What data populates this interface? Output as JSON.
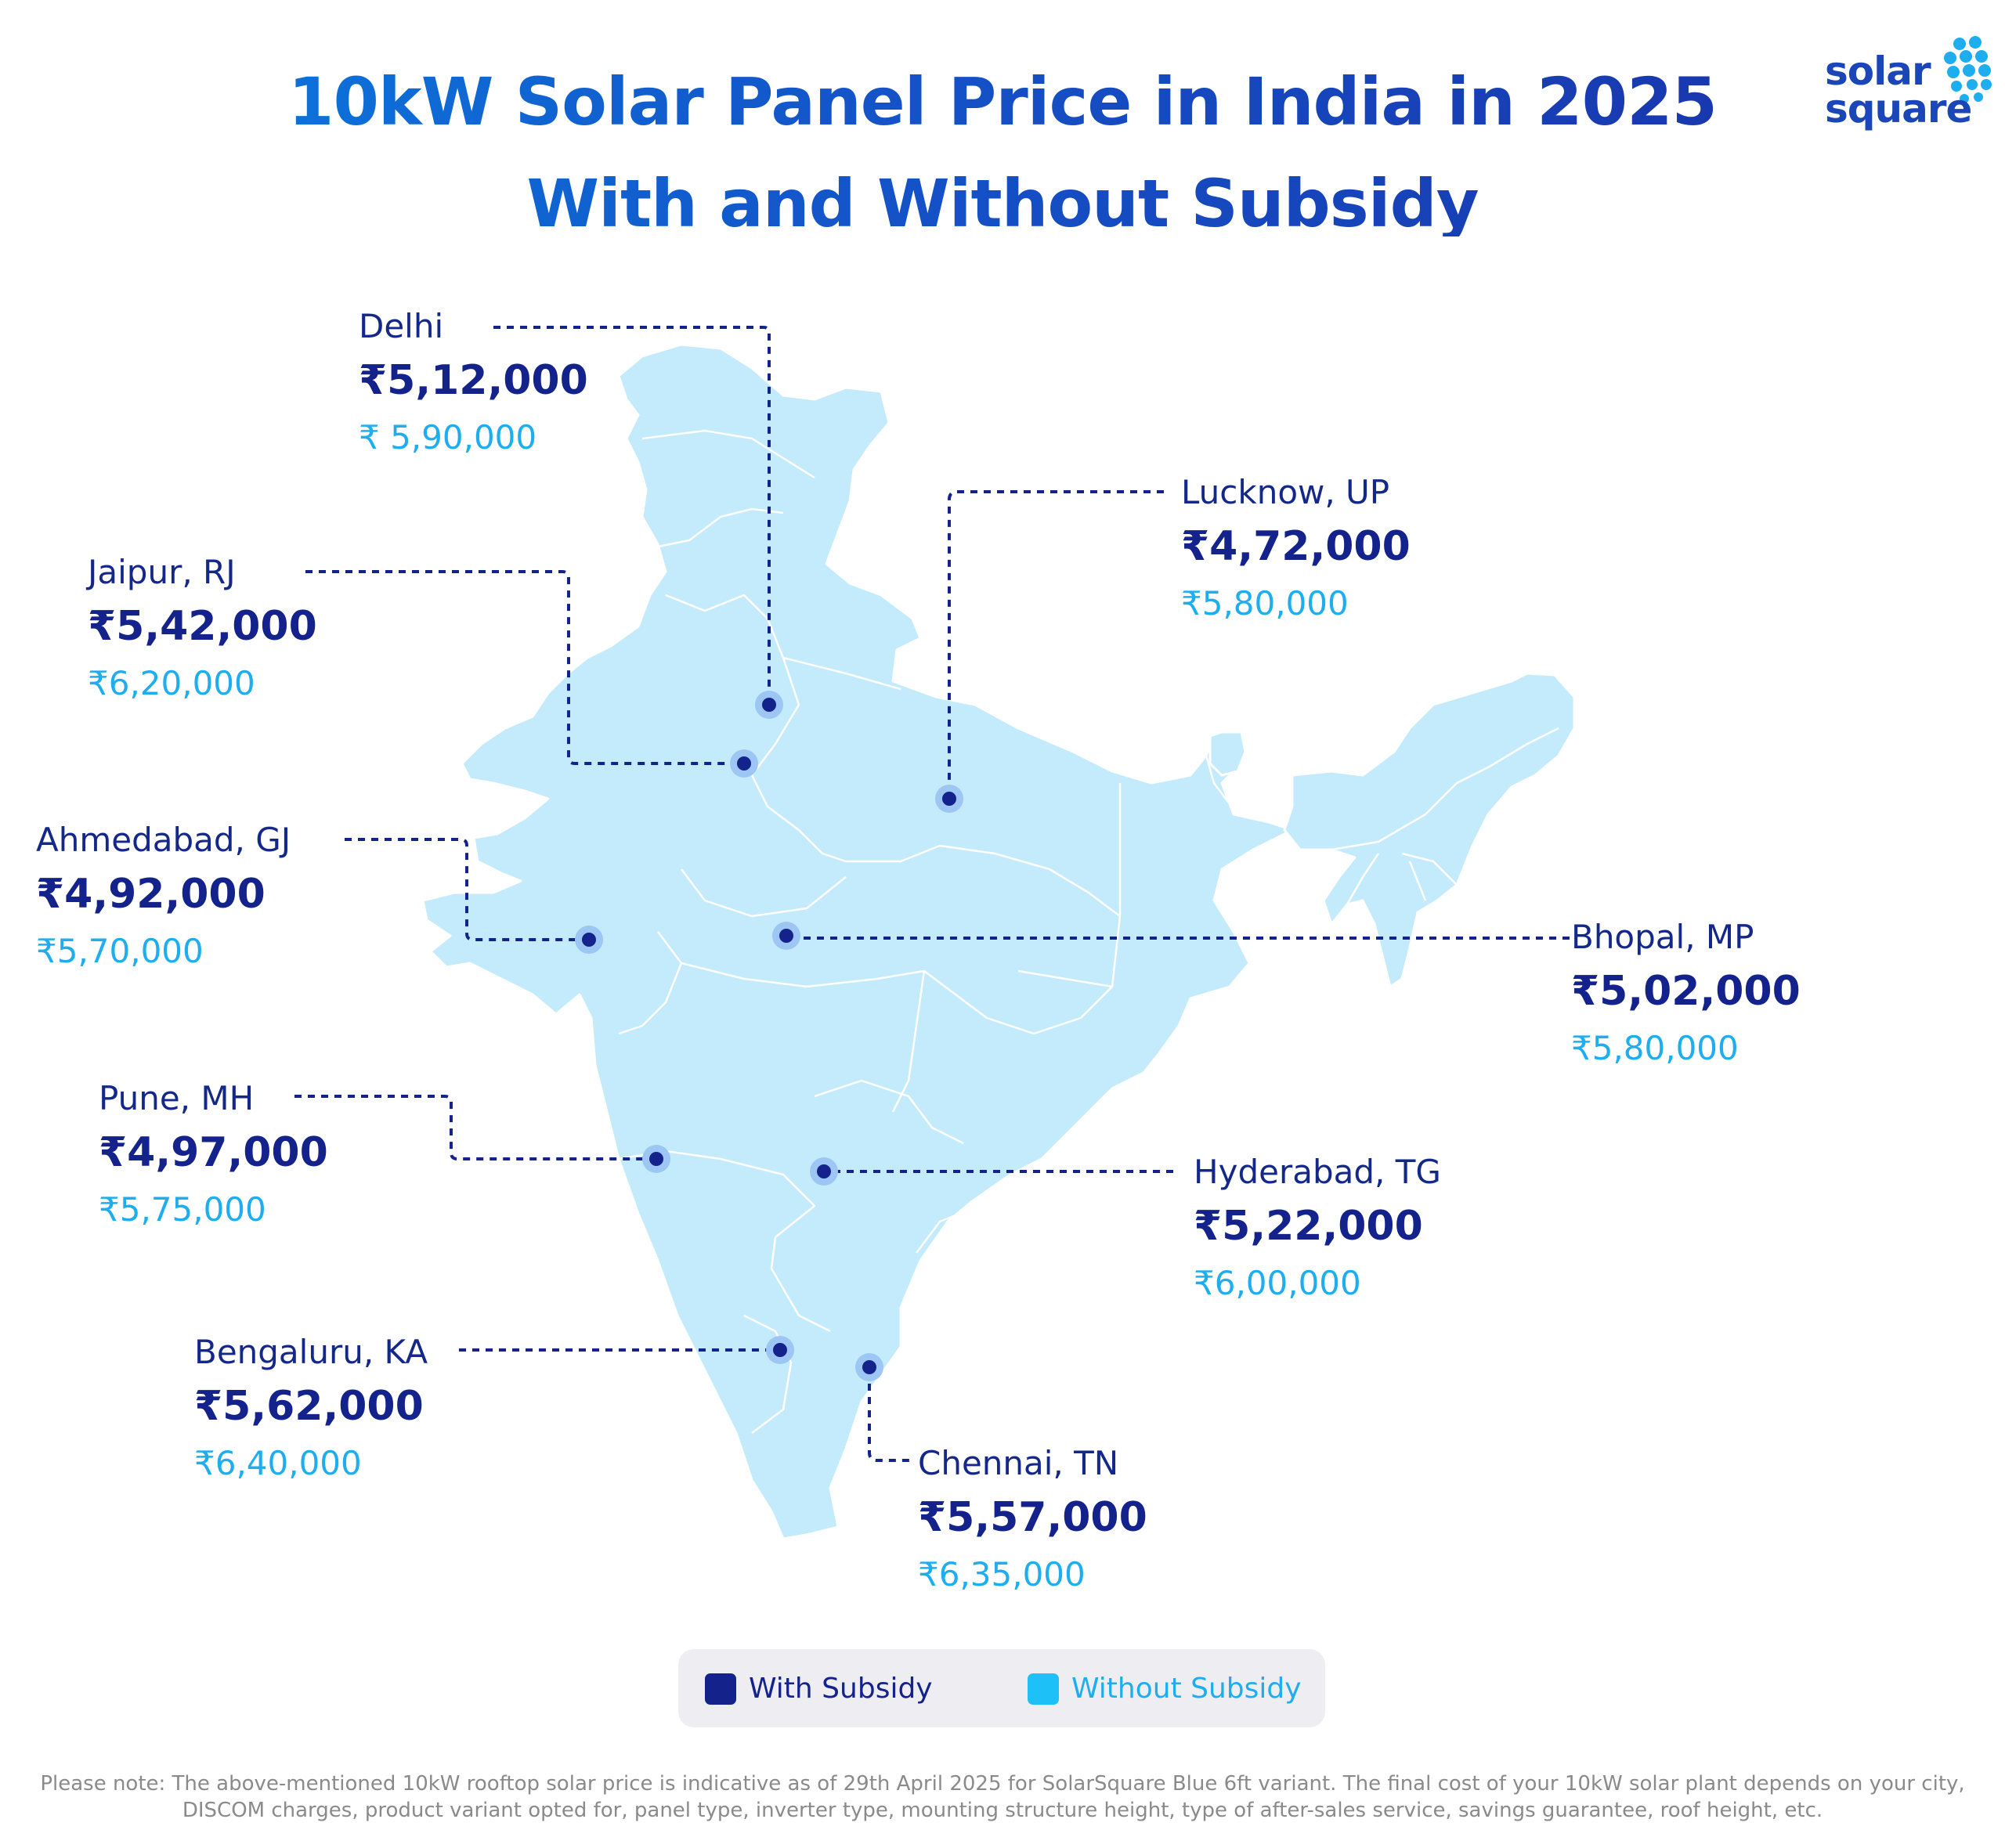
{
  "title": {
    "line1": "10kW Solar Panel Price in India in 2025",
    "line2": "With and Without Subsidy"
  },
  "logo": {
    "line1": "solar",
    "line2": "square"
  },
  "colors": {
    "with_subsidy": "#14228c",
    "without_subsidy": "#1eaef0",
    "map_fill": "#c4ebfb",
    "title_gradient_start": "#0a7fe0",
    "title_gradient_end": "#1a2fa6"
  },
  "cities": [
    {
      "id": "delhi",
      "name": "Delhi",
      "with_subsidy": "₹5,12,000",
      "without_subsidy": "₹ 5,90,000"
    },
    {
      "id": "jaipur",
      "name": "Jaipur, RJ",
      "with_subsidy": "₹5,42,000",
      "without_subsidy": "₹6,20,000"
    },
    {
      "id": "ahmedabad",
      "name": "Ahmedabad, GJ",
      "with_subsidy": "₹4,92,000",
      "without_subsidy": "₹5,70,000"
    },
    {
      "id": "pune",
      "name": "Pune, MH",
      "with_subsidy": "₹4,97,000",
      "without_subsidy": "₹5,75,000"
    },
    {
      "id": "bengaluru",
      "name": "Bengaluru, KA",
      "with_subsidy": "₹5,62,000",
      "without_subsidy": "₹6,40,000"
    },
    {
      "id": "lucknow",
      "name": "Lucknow, UP",
      "with_subsidy": "₹4,72,000",
      "without_subsidy": "₹5,80,000"
    },
    {
      "id": "bhopal",
      "name": "Bhopal, MP",
      "with_subsidy": "₹5,02,000",
      "without_subsidy": "₹5,80,000"
    },
    {
      "id": "hyderabad",
      "name": "Hyderabad, TG",
      "with_subsidy": "₹5,22,000",
      "without_subsidy": "₹6,00,000"
    },
    {
      "id": "chennai",
      "name": "Chennai, TN",
      "with_subsidy": "₹5,57,000",
      "without_subsidy": "₹6,35,000"
    }
  ],
  "legend": {
    "with_label": "With Subsidy",
    "without_label": "Without Subsidy"
  },
  "footnote": "Please note: The above-mentioned 10kW rooftop solar price is indicative as of 29th April 2025 for SolarSquare Blue 6ft variant. The final cost of your 10kW solar plant depends on your city, DISCOM charges, product variant opted for, panel type, inverter type, mounting structure height, type of after-sales service, savings guarantee, roof height, etc."
}
